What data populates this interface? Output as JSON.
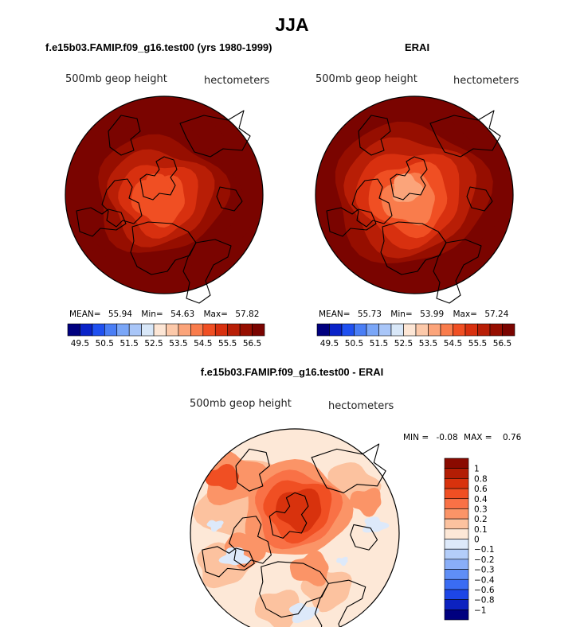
{
  "chart_data": {
    "type": "heatmap",
    "title": "JJA",
    "shared_labels": {
      "field_label": "500mb geop height",
      "units_label": "hectometers"
    },
    "panels": [
      {
        "id": "model",
        "title": "f.e15b03.FAMIP.f09_g16.test00 (yrs 1980-1999)",
        "stats": {
          "mean_label": "MEAN=",
          "mean": "55.94",
          "min_label": "Min=",
          "min": "54.63",
          "max_label": "Max=",
          "max": "57.82"
        },
        "polar_center_value": 54.63,
        "edge_value": 57.82,
        "band_levels": [
          57.5,
          57.0,
          56.5,
          56.0,
          55.5,
          55.0
        ]
      },
      {
        "id": "obs",
        "title": "ERAI",
        "stats": {
          "mean_label": "MEAN=",
          "mean": "55.73",
          "min_label": "Min=",
          "min": "53.99",
          "max_label": "Max=",
          "max": "57.24"
        },
        "polar_center_value": 53.99,
        "edge_value": 57.24,
        "band_levels": [
          57.0,
          56.5,
          56.0,
          55.5,
          55.0,
          54.5
        ]
      },
      {
        "id": "diff",
        "title": "f.e15b03.FAMIP.f09_g16.test00 - ERAI",
        "stats": {
          "min_label": "MIN =",
          "min": "-0.08",
          "max_label": "MAX =",
          "max": "0.76"
        },
        "polar_center_value": 0.76
      }
    ],
    "colorbar_main": {
      "orientation": "horizontal",
      "tick_labels": [
        "49.5",
        "50.5",
        "51.5",
        "52.5",
        "53.5",
        "54.5",
        "55.5",
        "56.5"
      ],
      "levels": [
        49.5,
        50,
        50.5,
        51,
        51.5,
        52,
        52.5,
        53,
        53.5,
        54,
        54.5,
        55,
        55.5,
        56,
        56.5
      ],
      "colors": [
        "#00007f",
        "#0a23c8",
        "#1f50f0",
        "#4a7ef5",
        "#7aa6f7",
        "#a9c6f8",
        "#d8e7f8",
        "#fde6d5",
        "#fcc9aa",
        "#fba47a",
        "#f97c4c",
        "#f04f23",
        "#d8300f",
        "#b81e06",
        "#960e00",
        "#7a0400"
      ]
    },
    "colorbar_diff": {
      "orientation": "vertical",
      "tick_labels": [
        "1",
        "0.8",
        "0.6",
        "0.4",
        "0.3",
        "0.2",
        "0.1",
        "0",
        "−0.1",
        "−0.2",
        "−0.3",
        "−0.4",
        "−0.6",
        "−0.8",
        "−1"
      ],
      "levels": [
        1,
        0.8,
        0.6,
        0.4,
        0.3,
        0.2,
        0.1,
        0,
        -0.1,
        -0.2,
        -0.3,
        -0.4,
        -0.6,
        -0.8,
        -1
      ],
      "colors_top_to_bottom": [
        "#8a0a00",
        "#b31d04",
        "#d8320d",
        "#f04f23",
        "#f97146",
        "#fb9467",
        "#fcc29f",
        "#fde8d7",
        "#dde9fa",
        "#b3cdf9",
        "#89aef8",
        "#5f8ef6",
        "#3a6cf3",
        "#1d46e6",
        "#0c22c0",
        "#00007f"
      ]
    }
  }
}
